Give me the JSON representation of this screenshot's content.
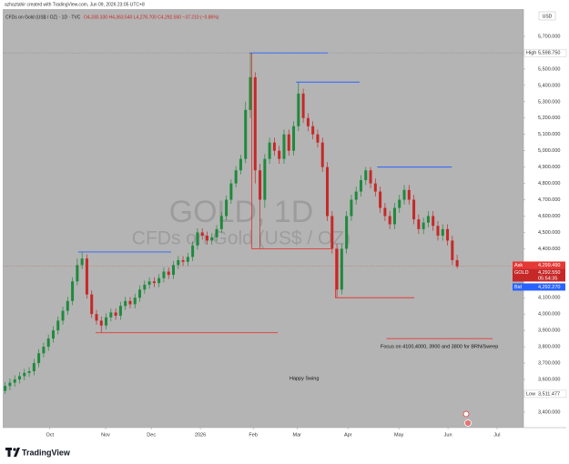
{
  "chart_data": {
    "type": "candlestick",
    "author_line": "azhaztahir created with TradingView.com, Jun 09, 2026 23:05 UTC+8",
    "symbol_line": "CFDs on Gold (US$ / OZ) · 1D · TVC",
    "ohlc_line": "O4,330.330 H4,363.540 L4,278.700 C4,292.550 −37.210 (−0.86%)",
    "watermark": "GOLD, 1D",
    "watermark_sub": "CFDs on Gold (US$ / OZ)",
    "currency": "USD",
    "brand": "TradingView",
    "up_color": "#1e8a3c",
    "down_color": "#c62828",
    "xlim": [
      0,
      108.3
    ],
    "xticks": [
      {
        "value": 9.8,
        "label": "Oct"
      },
      {
        "value": 21.4,
        "label": "Nov"
      },
      {
        "value": 30.9,
        "label": "Dec"
      },
      {
        "value": 41.1,
        "label": "2026"
      },
      {
        "value": 52.1,
        "label": "Feb"
      },
      {
        "value": 61.2,
        "label": "Mar"
      },
      {
        "value": 71.8,
        "label": "Apr"
      },
      {
        "value": 82.4,
        "label": "May"
      },
      {
        "value": 92.6,
        "label": "Jun"
      },
      {
        "value": 102.8,
        "label": "Jul"
      }
    ],
    "ylim": [
      3305,
      5867
    ],
    "yticks": [
      {
        "value": 3400,
        "label": "3,400.000"
      },
      {
        "value": 3600,
        "label": "3,600.000"
      },
      {
        "value": 3700,
        "label": "3,700.000"
      },
      {
        "value": 3800,
        "label": "3,800.000"
      },
      {
        "value": 3900,
        "label": "3,900.000"
      },
      {
        "value": 4000,
        "label": "4,000.000"
      },
      {
        "value": 4100,
        "label": "4,100.000"
      },
      {
        "value": 4400,
        "label": "4,400.000"
      },
      {
        "value": 4500,
        "label": "4,500.000"
      },
      {
        "value": 4600,
        "label": "4,600.000"
      },
      {
        "value": 4700,
        "label": "4,700.000"
      },
      {
        "value": 4800,
        "label": "4,800.000"
      },
      {
        "value": 4900,
        "label": "4,900.000"
      },
      {
        "value": 5000,
        "label": "5,000.000"
      },
      {
        "value": 5100,
        "label": "5,100.000"
      },
      {
        "value": 5200,
        "label": "5,200.000"
      },
      {
        "value": 5300,
        "label": "5,300.000"
      },
      {
        "value": 5400,
        "label": "5,400.000"
      },
      {
        "value": 5500,
        "label": "5,500.000"
      },
      {
        "value": 5700,
        "label": "5,700.000"
      }
    ],
    "high_marker": {
      "name": "High",
      "value": 5598.75,
      "label": "5,598.750"
    },
    "low_marker": {
      "name": "Low",
      "value": 3511.477,
      "label": "3,511.477"
    },
    "price_labels": [
      {
        "name": "Ask",
        "value": 4299.49,
        "label": "4,299.490",
        "color": "#e53935"
      },
      {
        "name": "GOLD",
        "value": 4292.55,
        "label": "4,292.550",
        "color": "#c62828",
        "countdown": "05:54:35"
      },
      {
        "name": "Bid",
        "value": 4292.27,
        "label": "4,292.270",
        "color": "#2962ff"
      }
    ],
    "series": [
      {
        "name": "GOLD",
        "open": [
          3530,
          3560,
          3580,
          3600,
          3620,
          3640,
          3650,
          3700,
          3760,
          3800,
          3850,
          3900,
          3960,
          4020,
          4080,
          4200,
          4300,
          4340,
          4120,
          4000,
          3960,
          3930,
          3980,
          4010,
          3990,
          4050,
          4080,
          4060,
          4100,
          4150,
          4180,
          4200,
          4190,
          4220,
          4260,
          4240,
          4300,
          4330,
          4320,
          4350,
          4420,
          4500,
          4480,
          4450,
          4470,
          4520,
          4600,
          4700,
          4800,
          4880,
          4950,
          5250,
          5450,
          4880,
          4700,
          4950,
          5050,
          5000,
          4950,
          5100,
          5000,
          5150,
          5350,
          5200,
          5150,
          5100,
          5050,
          4900,
          4600,
          4400,
          4150,
          4400,
          4600,
          4700,
          4750,
          4820,
          4880,
          4800,
          4750,
          4650,
          4600,
          4550,
          4650,
          4700,
          4760,
          4700,
          4580,
          4520,
          4560,
          4600,
          4540,
          4480,
          4520,
          4450,
          4330.33
        ],
        "high": [
          3585,
          3605,
          3625,
          3645,
          3665,
          3675,
          3725,
          3785,
          3825,
          3875,
          3925,
          3985,
          4045,
          4105,
          4225,
          4340,
          4381,
          4365,
          4145,
          4025,
          3985,
          4005,
          4035,
          4035,
          4075,
          4105,
          4105,
          4125,
          4175,
          4205,
          4225,
          4225,
          4245,
          4285,
          4285,
          4325,
          4355,
          4355,
          4375,
          4445,
          4525,
          4525,
          4505,
          4495,
          4545,
          4625,
          4725,
          4825,
          4905,
          4975,
          5300,
          5598.75,
          5480,
          4920,
          4980,
          5080,
          5080,
          5030,
          5130,
          5130,
          5180,
          5420,
          5380,
          5230,
          5180,
          5130,
          5080,
          4930,
          4630,
          4430,
          4430,
          4630,
          4730,
          4780,
          4850,
          4900,
          4900,
          4830,
          4780,
          4680,
          4630,
          4680,
          4730,
          4790,
          4790,
          4730,
          4610,
          4590,
          4630,
          4630,
          4570,
          4550,
          4550,
          4480,
          4363.54
        ],
        "low": [
          3511.477,
          3535,
          3555,
          3575,
          3595,
          3615,
          3625,
          3675,
          3735,
          3775,
          3825,
          3875,
          3935,
          3995,
          4055,
          4175,
          4275,
          4095,
          3975,
          3935,
          3886,
          3905,
          3955,
          3965,
          3965,
          4025,
          4035,
          4035,
          4075,
          4125,
          4155,
          4165,
          4165,
          4195,
          4215,
          4215,
          4275,
          4295,
          4295,
          4325,
          4395,
          4455,
          4425,
          4425,
          4445,
          4495,
          4575,
          4675,
          4775,
          4855,
          4925,
          5200,
          4800,
          4400,
          4650,
          4920,
          4970,
          4920,
          4920,
          4970,
          4970,
          5120,
          5170,
          5120,
          5070,
          5020,
          4870,
          4570,
          4370,
          4100,
          4120,
          4370,
          4570,
          4670,
          4720,
          4790,
          4770,
          4720,
          4620,
          4570,
          4520,
          4520,
          4620,
          4670,
          4670,
          4550,
          4490,
          4490,
          4530,
          4510,
          4450,
          4450,
          4420,
          4300,
          4278.7
        ],
        "close": [
          3560,
          3580,
          3600,
          3620,
          3640,
          3650,
          3700,
          3760,
          3800,
          3850,
          3900,
          3960,
          4020,
          4080,
          4200,
          4300,
          4340,
          4120,
          4000,
          3960,
          3930,
          3980,
          4010,
          3990,
          4050,
          4080,
          4060,
          4100,
          4150,
          4180,
          4200,
          4190,
          4220,
          4260,
          4240,
          4300,
          4330,
          4320,
          4350,
          4420,
          4500,
          4480,
          4450,
          4470,
          4520,
          4600,
          4700,
          4800,
          4880,
          4950,
          5250,
          5450,
          4880,
          4700,
          4950,
          5050,
          5000,
          4950,
          5100,
          5000,
          5150,
          5350,
          5200,
          5150,
          5100,
          5050,
          4900,
          4600,
          4400,
          4150,
          4400,
          4600,
          4700,
          4750,
          4820,
          4880,
          4800,
          4750,
          4650,
          4600,
          4550,
          4650,
          4700,
          4760,
          4700,
          4580,
          4520,
          4560,
          4600,
          4540,
          4480,
          4520,
          4450,
          4330.33,
          4292.55
        ]
      }
    ],
    "drawings": [
      {
        "color": "#2962ff",
        "points": [
          [
            15.7,
            4380
          ],
          [
            35.0,
            4380
          ]
        ]
      },
      {
        "color": "#e53935",
        "points": [
          [
            19.3,
            3886
          ],
          [
            57.2,
            3886
          ]
        ]
      },
      {
        "color": "#2962ff",
        "points": [
          [
            51.3,
            5598.75
          ],
          [
            67.6,
            5598.75
          ]
        ]
      },
      {
        "color": "#e53935",
        "points": [
          [
            51.8,
            5598.75
          ],
          [
            51.8,
            4400
          ],
          [
            68.5,
            4400
          ]
        ]
      },
      {
        "color": "#2962ff",
        "points": [
          [
            61.0,
            5420
          ],
          [
            74.2,
            5420
          ]
        ]
      },
      {
        "color": "#e53935",
        "points": [
          [
            69.2,
            4400
          ],
          [
            69.2,
            4100
          ],
          [
            85.6,
            4100
          ]
        ]
      },
      {
        "color": "#2962ff",
        "points": [
          [
            77.9,
            4900
          ],
          [
            93.4,
            4900
          ]
        ]
      },
      {
        "color": "#e53935",
        "points": [
          [
            79.8,
            3850
          ],
          [
            101.9,
            3850
          ]
        ]
      }
    ],
    "annotations": [
      "Focus on 4100,4000, 3900 and 3800 for BRN/Sweep",
      "Happy Swing"
    ]
  }
}
